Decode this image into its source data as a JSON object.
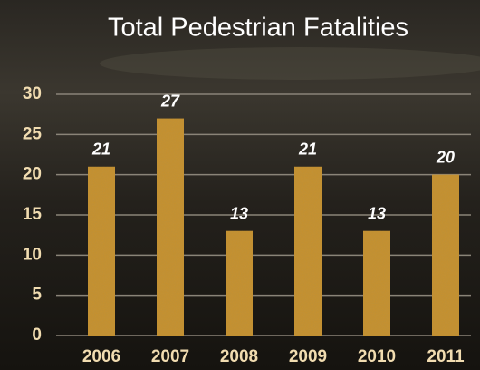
{
  "chart_data": {
    "type": "bar",
    "title": "Total Pedestrian Fatalities",
    "categories": [
      "2006",
      "2007",
      "2008",
      "2009",
      "2010",
      "2011"
    ],
    "values": [
      21,
      27,
      13,
      21,
      13,
      20
    ],
    "color": "#c8912e",
    "ylim": [
      0,
      30
    ],
    "yticks": [
      0,
      5,
      10,
      15,
      20,
      25,
      30
    ],
    "grid": true
  }
}
